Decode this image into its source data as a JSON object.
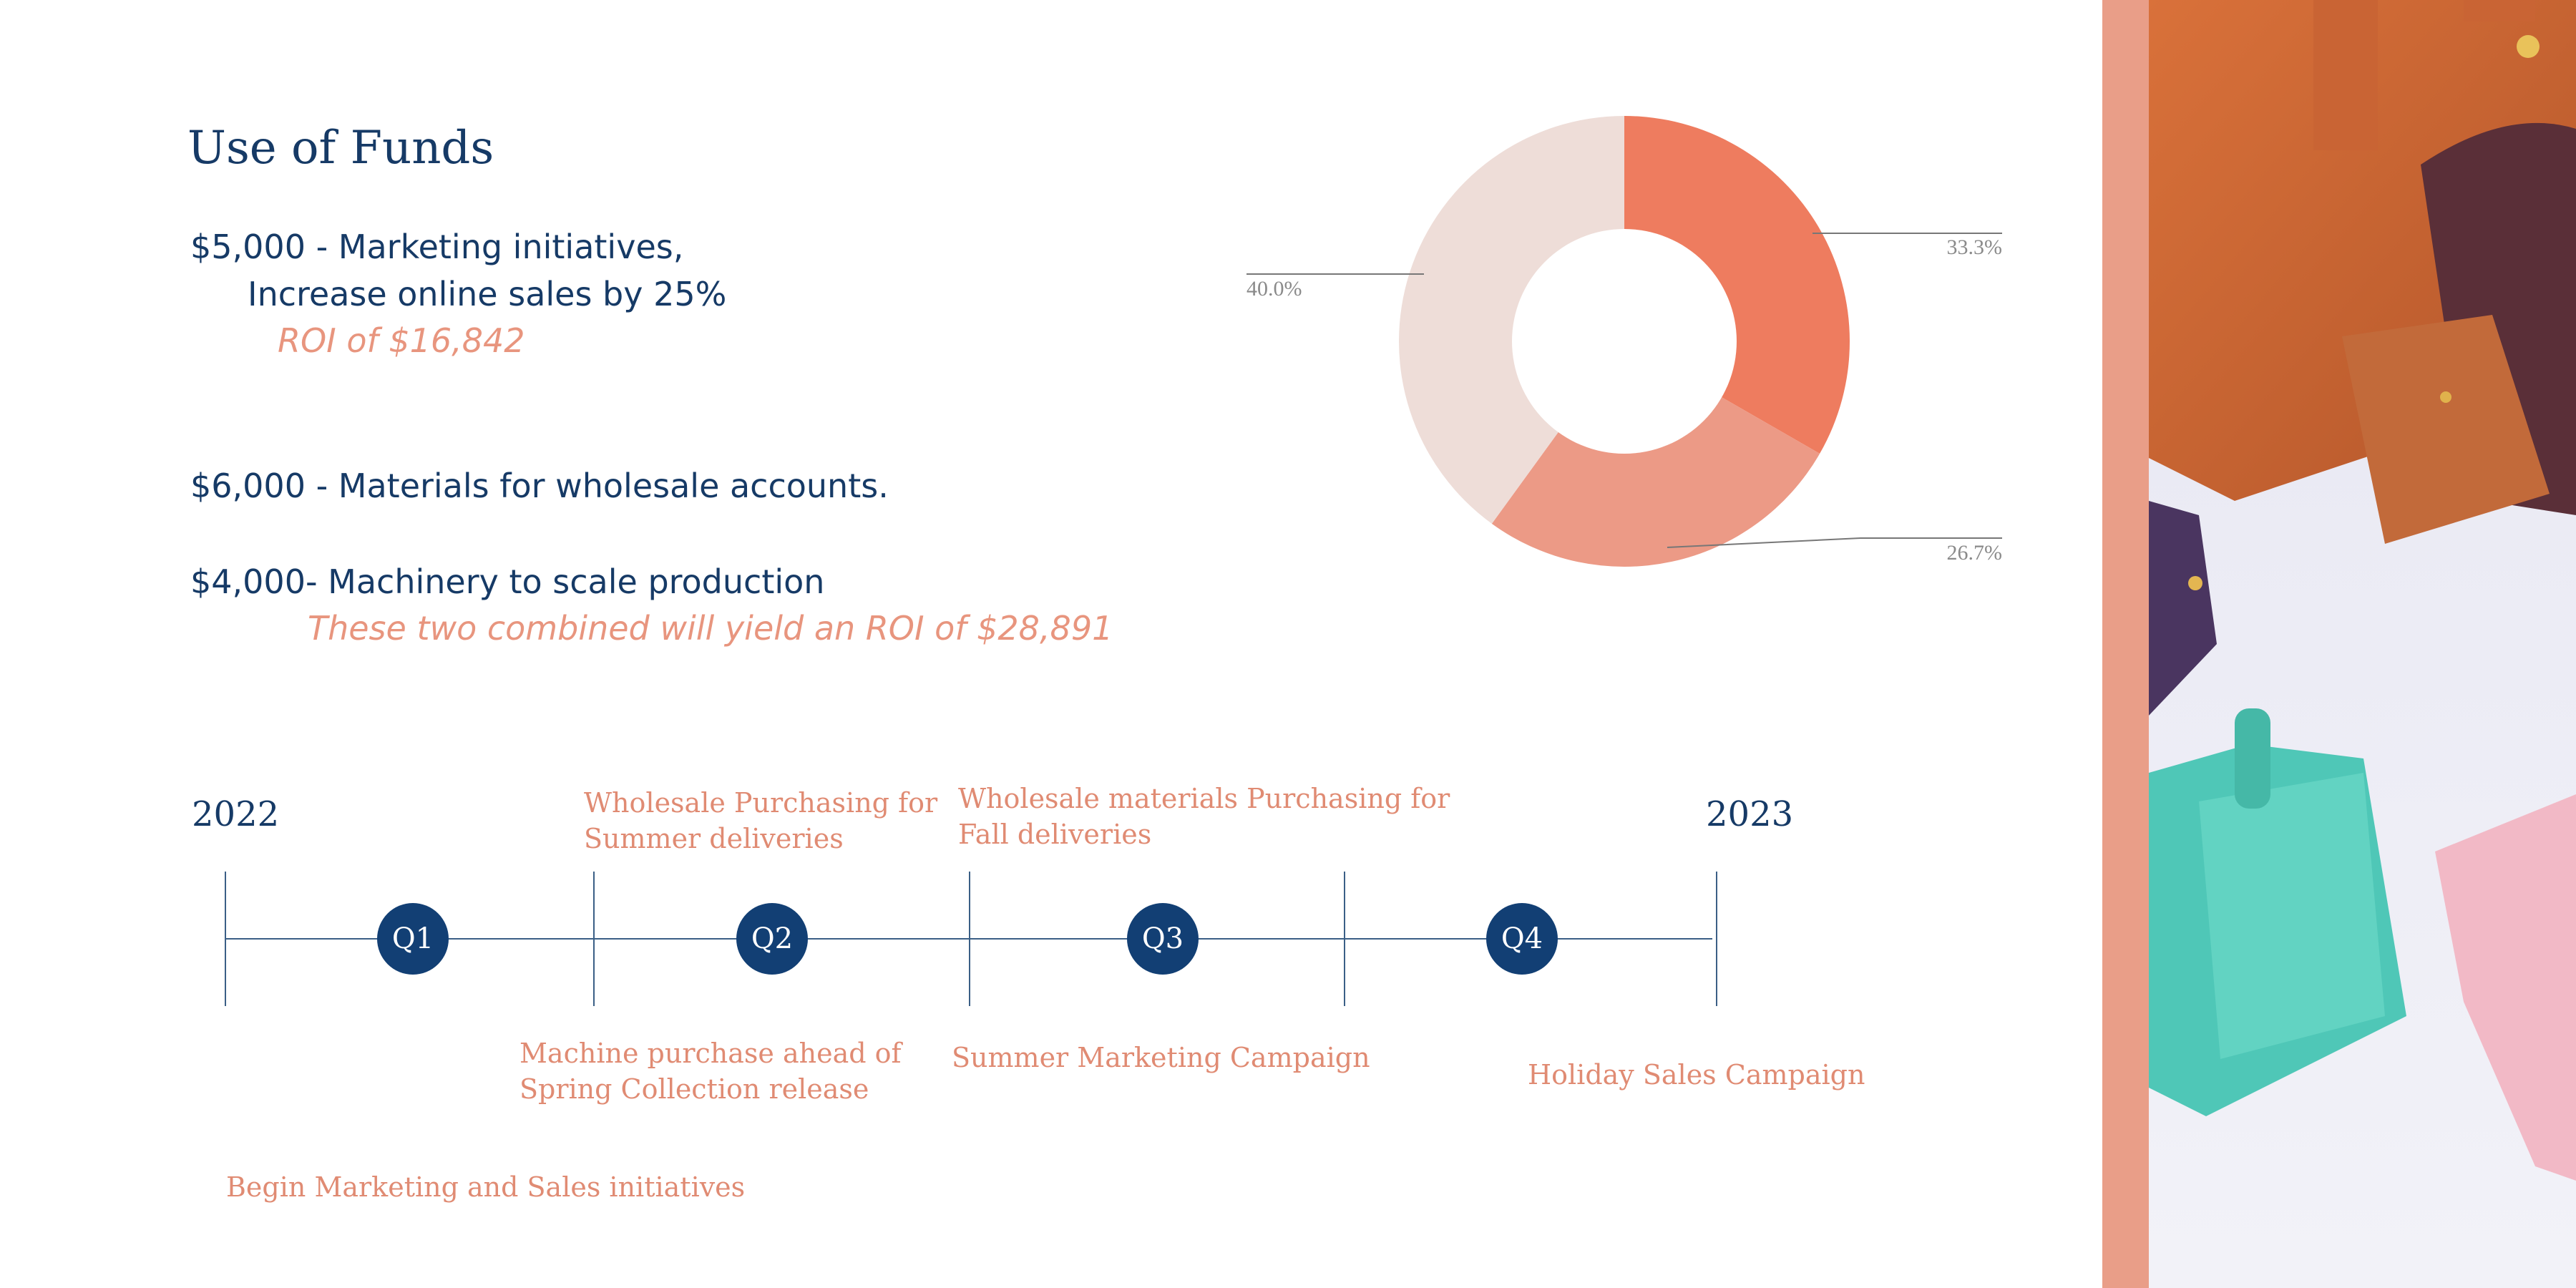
{
  "title": "Use of Funds",
  "funds": {
    "f1_line1": "$5,000 - Marketing initiatives,",
    "f1_line2": "Increase online sales by 25%",
    "f1_roi": "ROI of $16,842",
    "f2": "$6,000 - Materials for wholesale accounts.",
    "f3": "$4,000- Machinery to scale production",
    "f23_roi": "These two combined will yield an ROI of $28,891"
  },
  "chart_data": {
    "type": "pie",
    "donut": true,
    "labels": [
      "33.3%",
      "26.7%",
      "40.0%"
    ],
    "values": [
      33.3,
      26.7,
      40.0
    ],
    "colors": [
      "#ee7c5f",
      "#ec9a86",
      "#eeddd8"
    ]
  },
  "timeline": {
    "start_year": "2022",
    "end_year": "2023",
    "quarters": [
      "Q1",
      "Q2",
      "Q3",
      "Q4"
    ],
    "above": {
      "q2_line1": "Wholesale Purchasing for",
      "q2_line2": "Summer deliveries",
      "q3_line1": "Wholesale materials Purchasing for",
      "q3_line2": "Fall deliveries"
    },
    "below": {
      "machine_line1": "Machine purchase ahead of",
      "machine_line2": "Spring Collection release",
      "summer": "Summer Marketing Campaign",
      "holiday": "Holiday Sales Campaign",
      "begin": "Begin Marketing and Sales initiatives"
    }
  },
  "colors": {
    "navy": "#163a66",
    "accent": "#e8957e",
    "stripe": "#e99e88"
  }
}
